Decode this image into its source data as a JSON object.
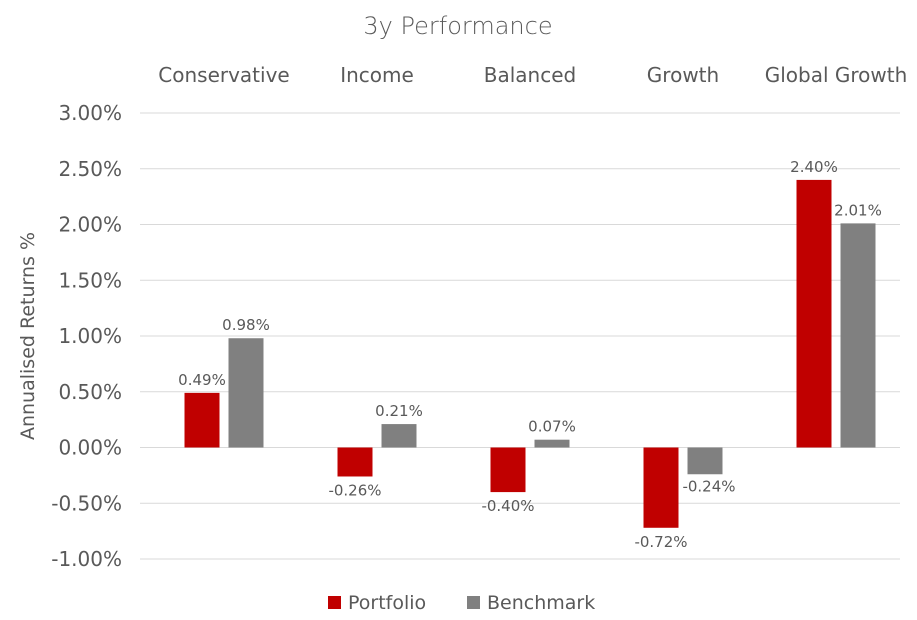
{
  "chart_data": {
    "type": "bar",
    "title": "3y Performance",
    "ylabel": "Annualised Returns %",
    "xlabel": "",
    "categories": [
      "Conservative",
      "Income",
      "Balanced",
      "Growth",
      "Global Growth"
    ],
    "series": [
      {
        "name": "Portfolio",
        "color": "#c00000",
        "values": [
          0.49,
          -0.26,
          -0.4,
          -0.72,
          2.4
        ],
        "labels": [
          "0.49%",
          "-0.26%",
          "-0.40%",
          "-0.72%",
          "2.40%"
        ]
      },
      {
        "name": "Benchmark",
        "color": "#808080",
        "values": [
          0.98,
          0.21,
          0.07,
          -0.24,
          2.01
        ],
        "labels": [
          "0.98%",
          "0.21%",
          "0.07%",
          "-0.24%",
          "2.01%"
        ]
      }
    ],
    "ylim": [
      -1.0,
      3.0
    ],
    "yticks": [
      3.0,
      2.5,
      2.0,
      1.5,
      1.0,
      0.5,
      0.0,
      -0.5,
      -1.0
    ],
    "ytick_labels": [
      "3.00%",
      "2.50%",
      "2.00%",
      "1.50%",
      "1.00%",
      "0.50%",
      "0.00%",
      "-0.50%",
      "-1.00%"
    ],
    "category_labels_position": "top",
    "grid": true,
    "legend_position": "bottom"
  }
}
